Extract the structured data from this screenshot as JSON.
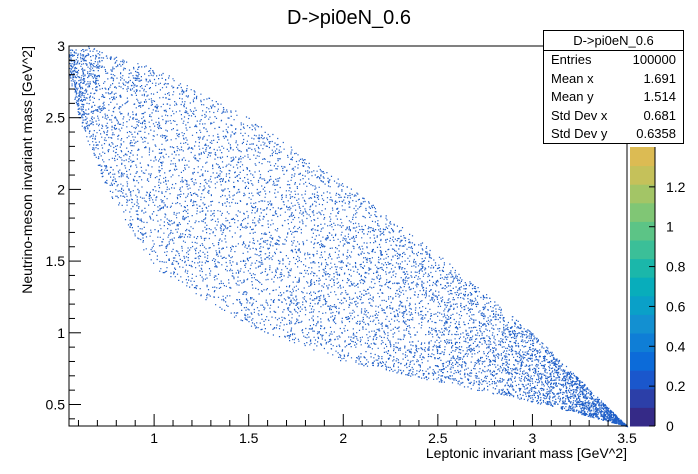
{
  "chart_data": {
    "type": "scatter",
    "title": "D->pi0eN_0.6",
    "xlabel": "Leptonic invariant mass [GeV^2]",
    "ylabel": "Neutrino-meson invariant mass [GeV^2]",
    "xlim": [
      0.55,
      3.5
    ],
    "ylim": [
      0.35,
      3.0
    ],
    "x_ticks": [
      "1",
      "1.5",
      "2",
      "2.5",
      "3",
      "3.5"
    ],
    "x_tick_values": [
      1,
      1.5,
      2,
      2.5,
      3,
      3.5
    ],
    "y_ticks": [
      "0.5",
      "1",
      "1.5",
      "2",
      "2.5",
      "3"
    ],
    "y_tick_values": [
      0.5,
      1,
      1.5,
      2,
      2.5,
      3
    ],
    "color_scale": {
      "range": [
        0,
        1.4
      ],
      "ticks": [
        "0",
        "0.2",
        "0.4",
        "0.6",
        "0.8",
        "1",
        "1.2"
      ],
      "tick_values": [
        0,
        0.2,
        0.4,
        0.6,
        0.8,
        1.0,
        1.2
      ],
      "colors": [
        "#352a87",
        "#2c3fa8",
        "#1a57cc",
        "#0c6bd9",
        "#0f7ed6",
        "#1390d1",
        "#0aa0c8",
        "#08adbb",
        "#1bb7aa",
        "#3bbf98",
        "#5cc486",
        "#80c675",
        "#a3c566",
        "#c5c15a",
        "#dcbb53"
      ]
    },
    "point_color": "#1f5fc8",
    "region_boundary": {
      "description_points_upper": [
        [
          0.6,
          2.98
        ],
        [
          0.65,
          3.0
        ],
        [
          1.0,
          2.85
        ],
        [
          1.5,
          2.5
        ],
        [
          2.0,
          2.05
        ],
        [
          2.5,
          1.55
        ],
        [
          3.0,
          1.0
        ],
        [
          3.5,
          0.35
        ]
      ],
      "description_points_lower": [
        [
          0.55,
          2.8
        ],
        [
          0.6,
          2.5
        ],
        [
          0.75,
          2.0
        ],
        [
          1.0,
          1.45
        ],
        [
          1.5,
          1.05
        ],
        [
          2.0,
          0.8
        ],
        [
          2.5,
          0.66
        ],
        [
          3.0,
          0.52
        ],
        [
          3.5,
          0.35
        ]
      ]
    },
    "grid": false,
    "legend": "top-right"
  },
  "stats": {
    "name": "D->pi0eN_0.6",
    "rows": [
      {
        "label": "Entries",
        "value": "100000"
      },
      {
        "label": "Mean x",
        "value": "1.691"
      },
      {
        "label": "Mean y",
        "value": "1.514"
      },
      {
        "label": "Std Dev x",
        "value": "0.681"
      },
      {
        "label": "Std Dev y",
        "value": "0.6358"
      }
    ]
  }
}
